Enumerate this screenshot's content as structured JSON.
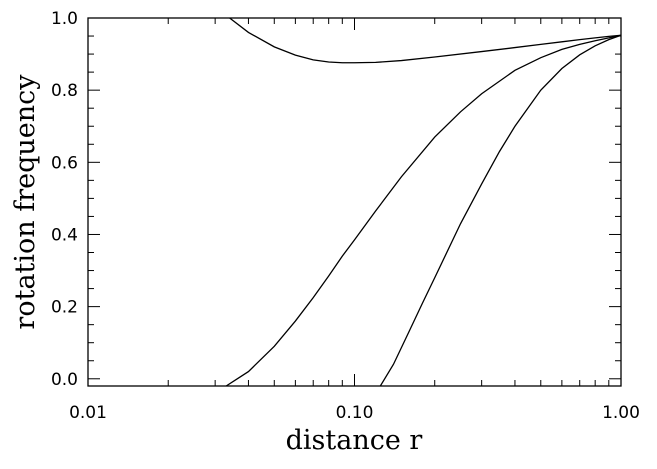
{
  "chart_data": {
    "type": "line",
    "xlabel": "distance r",
    "ylabel": "rotation frequency",
    "xscale": "log",
    "xlim": [
      0.01,
      1.0
    ],
    "ylim": [
      -0.02,
      1.0
    ],
    "xticks": [
      0.01,
      0.1,
      1.0
    ],
    "xtick_labels": [
      "0.01",
      "0.10",
      "1.00"
    ],
    "yticks": [
      0.0,
      0.2,
      0.4,
      0.6,
      0.8,
      1.0
    ],
    "ytick_labels": [
      "0.0",
      "0.2",
      "0.4",
      "0.6",
      "0.8",
      "1.0"
    ],
    "grid": false,
    "colors": {
      "line": "#000000",
      "background": "#ffffff"
    },
    "series": [
      {
        "x": [
          0.034,
          0.04,
          0.05,
          0.06,
          0.07,
          0.08,
          0.09,
          0.1,
          0.12,
          0.15,
          0.2,
          0.3,
          0.4,
          0.5,
          0.6,
          0.7,
          0.8,
          0.9,
          1.0
        ],
        "y": [
          1.0,
          0.96,
          0.92,
          0.897,
          0.884,
          0.878,
          0.876,
          0.876,
          0.877,
          0.882,
          0.892,
          0.907,
          0.918,
          0.927,
          0.934,
          0.94,
          0.945,
          0.949,
          0.952
        ]
      },
      {
        "x": [
          0.033,
          0.04,
          0.05,
          0.06,
          0.07,
          0.08,
          0.09,
          0.1,
          0.12,
          0.15,
          0.2,
          0.25,
          0.3,
          0.4,
          0.5,
          0.6,
          0.7,
          0.8,
          0.9,
          1.0
        ],
        "y": [
          -0.02,
          0.02,
          0.09,
          0.16,
          0.225,
          0.285,
          0.34,
          0.385,
          0.465,
          0.56,
          0.67,
          0.74,
          0.79,
          0.855,
          0.89,
          0.913,
          0.927,
          0.937,
          0.945,
          0.952
        ]
      },
      {
        "x": [
          0.125,
          0.14,
          0.16,
          0.18,
          0.2,
          0.25,
          0.3,
          0.35,
          0.4,
          0.5,
          0.6,
          0.7,
          0.8,
          0.9,
          1.0
        ],
        "y": [
          -0.02,
          0.04,
          0.13,
          0.21,
          0.28,
          0.43,
          0.54,
          0.63,
          0.7,
          0.8,
          0.86,
          0.898,
          0.923,
          0.94,
          0.952
        ]
      }
    ]
  }
}
